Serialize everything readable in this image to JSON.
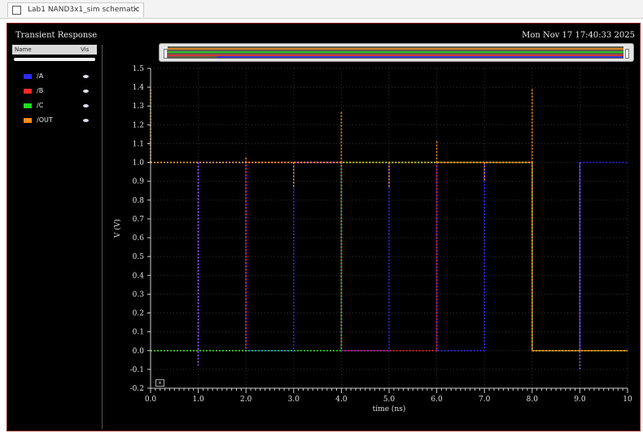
{
  "tab": {
    "title": "Lab1 NAND3x1_sim schematic",
    "close_glyph": "×"
  },
  "window": {
    "title": "Transient Response",
    "timestamp": "Mon Nov 17 17:40:33 2025"
  },
  "legend": {
    "col_name": "Name",
    "col_vis": "Vis",
    "items": [
      {
        "label": "/A",
        "color": "#2b2bff"
      },
      {
        "label": "/B",
        "color": "#ff2a2a"
      },
      {
        "label": "/C",
        "color": "#22dd22"
      },
      {
        "label": "/OUT",
        "color": "#ff8c1a"
      }
    ]
  },
  "chart_data": {
    "type": "line",
    "xlabel": "time (ns)",
    "ylabel": "V (V)",
    "xlim": [
      0.0,
      10.0
    ],
    "ylim": [
      -0.2,
      1.5
    ],
    "xticks": [
      "0.0",
      "1.0",
      "2.0",
      "3.0",
      "4.0",
      "5.0",
      "6.0",
      "7.0",
      "8.0",
      "9.0",
      "10"
    ],
    "yticks": [
      "-0.2",
      "-0.1",
      "0.0",
      "0.1",
      "0.2",
      "0.3",
      "0.4",
      "0.5",
      "0.6",
      "0.7",
      "0.8",
      "0.9",
      "1.0",
      "1.1",
      "1.2",
      "1.3",
      "1.4",
      "1.5"
    ],
    "grid": true,
    "series": [
      {
        "name": "/A",
        "color": "#2b2bff",
        "x": [
          0,
          1.0,
          1.0,
          2.0,
          2.0,
          3.0,
          3.0,
          4.0,
          4.0,
          5.0,
          5.0,
          6.0,
          6.0,
          7.0,
          7.0,
          8.0,
          8.0,
          9.0,
          9.0,
          10.0
        ],
        "y": [
          0,
          0,
          1.0,
          1.0,
          0,
          0,
          1.0,
          1.0,
          0,
          0,
          1.0,
          1.0,
          0,
          0,
          1.0,
          1.0,
          0,
          0,
          1.0,
          1.0
        ]
      },
      {
        "name": "/B",
        "color": "#ff2a2a",
        "x": [
          0,
          2.0,
          2.0,
          4.0,
          4.0,
          6.0,
          6.0,
          8.0,
          8.0,
          10.0
        ],
        "y": [
          0,
          0,
          1.0,
          1.0,
          0,
          0,
          1.0,
          1.0,
          0,
          0
        ]
      },
      {
        "name": "/C",
        "color": "#22dd22",
        "x": [
          0,
          4.0,
          4.0,
          8.0,
          8.0,
          10.0
        ],
        "y": [
          0,
          0,
          1.0,
          1.0,
          0,
          0
        ]
      },
      {
        "name": "/OUT",
        "color": "#ffb020",
        "x": [
          0,
          8.0,
          8.0,
          10.0
        ],
        "y": [
          1.0,
          1.0,
          0,
          0
        ]
      }
    ],
    "spikes": [
      {
        "x": 0.0,
        "y0": 1.0,
        "y1": 1.39,
        "color": "#ff8c1a"
      },
      {
        "x": 1.0,
        "y0": 1.0,
        "y1": -0.08,
        "color": "#b05cff"
      },
      {
        "x": 2.0,
        "y0": 1.0,
        "y1": 1.03,
        "color": "#ff7a1a"
      },
      {
        "x": 3.0,
        "y0": 1.0,
        "y1": 0.87,
        "color": "#ff8c1a"
      },
      {
        "x": 4.0,
        "y0": 1.0,
        "y1": 1.27,
        "color": "#ff8c1a"
      },
      {
        "x": 5.0,
        "y0": 1.0,
        "y1": 0.87,
        "color": "#ff8c1a"
      },
      {
        "x": 6.0,
        "y0": 1.0,
        "y1": 1.12,
        "color": "#ff8c1a"
      },
      {
        "x": 7.0,
        "y0": 1.0,
        "y1": 0.9,
        "color": "#ff8c1a"
      },
      {
        "x": 8.0,
        "y0": 1.0,
        "y1": 1.39,
        "color": "#ff8c1a"
      },
      {
        "x": 9.0,
        "y0": 1.0,
        "y1": -0.1,
        "color": "#b05cff"
      }
    ]
  }
}
